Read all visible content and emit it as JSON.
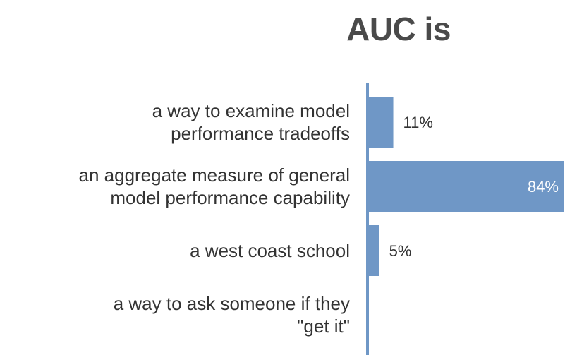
{
  "chart_data": {
    "type": "bar",
    "orientation": "horizontal",
    "title": "AUC is",
    "categories": [
      [
        "a way to examine model",
        "performance tradeoffs"
      ],
      [
        "an aggregate measure of general",
        "model performance capability"
      ],
      [
        "a west coast school"
      ],
      [
        "a way to ask someone if they",
        "\"get it\""
      ]
    ],
    "values": [
      11,
      84,
      5,
      0
    ],
    "value_labels": [
      "11%",
      "84%",
      "5%",
      ""
    ],
    "xlim": [
      0,
      84
    ],
    "unit": "%",
    "grid": false,
    "legend": "none"
  },
  "colors": {
    "bar": "#6f97c6",
    "axis": "#6f97c6",
    "title": "#4a4a4a",
    "text": "#333333"
  }
}
